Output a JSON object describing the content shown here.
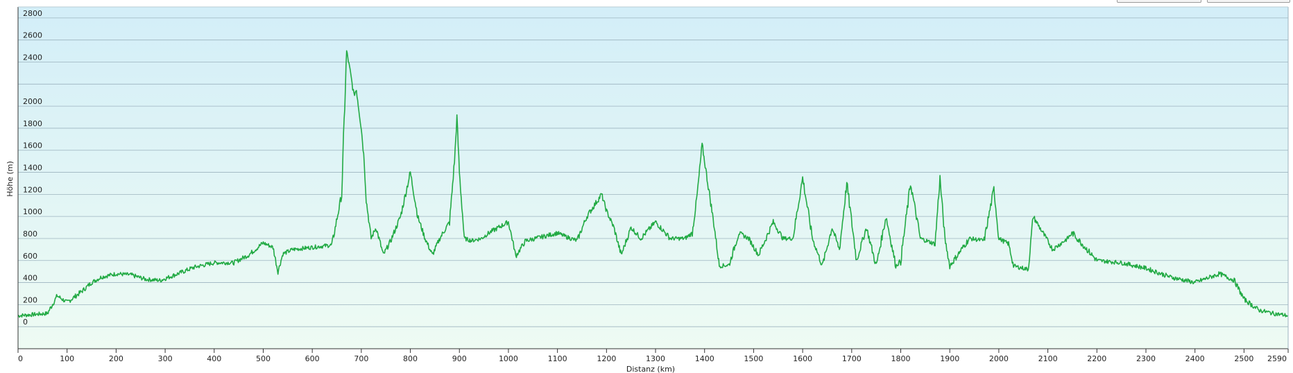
{
  "chart_data": {
    "type": "area",
    "title": "",
    "xlabel": "Distanz  (km)",
    "ylabel": "Höhe (m)",
    "xlim": [
      0,
      2590
    ],
    "ylim": [
      -200,
      2900
    ],
    "x_ticks": [
      0,
      100,
      200,
      300,
      400,
      500,
      600,
      700,
      800,
      900,
      1000,
      1100,
      1200,
      1300,
      1400,
      1500,
      1600,
      1700,
      1800,
      1900,
      2000,
      2100,
      2200,
      2300,
      2400,
      2500,
      2590
    ],
    "y_ticks": [
      0,
      200,
      400,
      600,
      800,
      1000,
      1200,
      1400,
      1600,
      1800,
      2000,
      2400,
      2600,
      2800
    ],
    "grid": true,
    "colors": {
      "line": "#22aa44",
      "fill_top": "#d3eef8",
      "fill_bottom": "#eefbf3",
      "grid": "#9cb3bf"
    },
    "series": [
      {
        "name": "",
        "x": [
          0,
          30,
          60,
          80,
          100,
          130,
          150,
          170,
          200,
          230,
          260,
          290,
          320,
          360,
          400,
          440,
          470,
          500,
          520,
          530,
          540,
          560,
          600,
          640,
          660,
          670,
          676,
          685,
          690,
          700,
          706,
          710,
          720,
          730,
          745,
          760,
          780,
          800,
          815,
          830,
          845,
          860,
          880,
          890,
          895,
          900,
          910,
          925,
          945,
          960,
          1000,
          1010,
          1015,
          1035,
          1037,
          1100,
          1115,
          1140,
          1160,
          1190,
          1200,
          1215,
          1230,
          1250,
          1270,
          1300,
          1330,
          1360,
          1375,
          1385,
          1395,
          1405,
          1420,
          1430,
          1450,
          1470,
          1490,
          1510,
          1540,
          1560,
          1580,
          1600,
          1620,
          1640,
          1660,
          1675,
          1690,
          1710,
          1730,
          1750,
          1770,
          1790,
          1800,
          1820,
          1840,
          1870,
          1880,
          1890,
          1900,
          1940,
          1970,
          1990,
          2000,
          2020,
          2030,
          2060,
          2070,
          2090,
          2110,
          2140,
          2150,
          2200,
          2250,
          2300,
          2350,
          2400,
          2450,
          2480,
          2500,
          2530,
          2560,
          2590
        ],
        "y": [
          100,
          110,
          120,
          280,
          220,
          320,
          400,
          450,
          480,
          470,
          430,
          420,
          470,
          540,
          580,
          580,
          650,
          760,
          720,
          500,
          660,
          700,
          720,
          740,
          1200,
          2500,
          2350,
          2100,
          2150,
          1800,
          1500,
          1150,
          800,
          900,
          650,
          780,
          1000,
          1400,
          1000,
          800,
          650,
          800,
          950,
          1500,
          1900,
          1400,
          800,
          780,
          800,
          850,
          950,
          750,
          640,
          780,
          780,
          850,
          820,
          780,
          1000,
          1200,
          1050,
          900,
          650,
          900,
          800,
          950,
          800,
          800,
          850,
          1200,
          1650,
          1350,
          900,
          550,
          560,
          850,
          800,
          650,
          950,
          800,
          800,
          1350,
          800,
          550,
          900,
          700,
          1300,
          600,
          900,
          550,
          1000,
          550,
          600,
          1300,
          800,
          750,
          1350,
          800,
          550,
          800,
          780,
          1250,
          800,
          750,
          550,
          520,
          1000,
          850,
          700,
          800,
          850,
          600,
          580,
          530,
          450,
          400,
          480,
          420,
          250,
          150,
          120,
          100
        ]
      }
    ]
  }
}
